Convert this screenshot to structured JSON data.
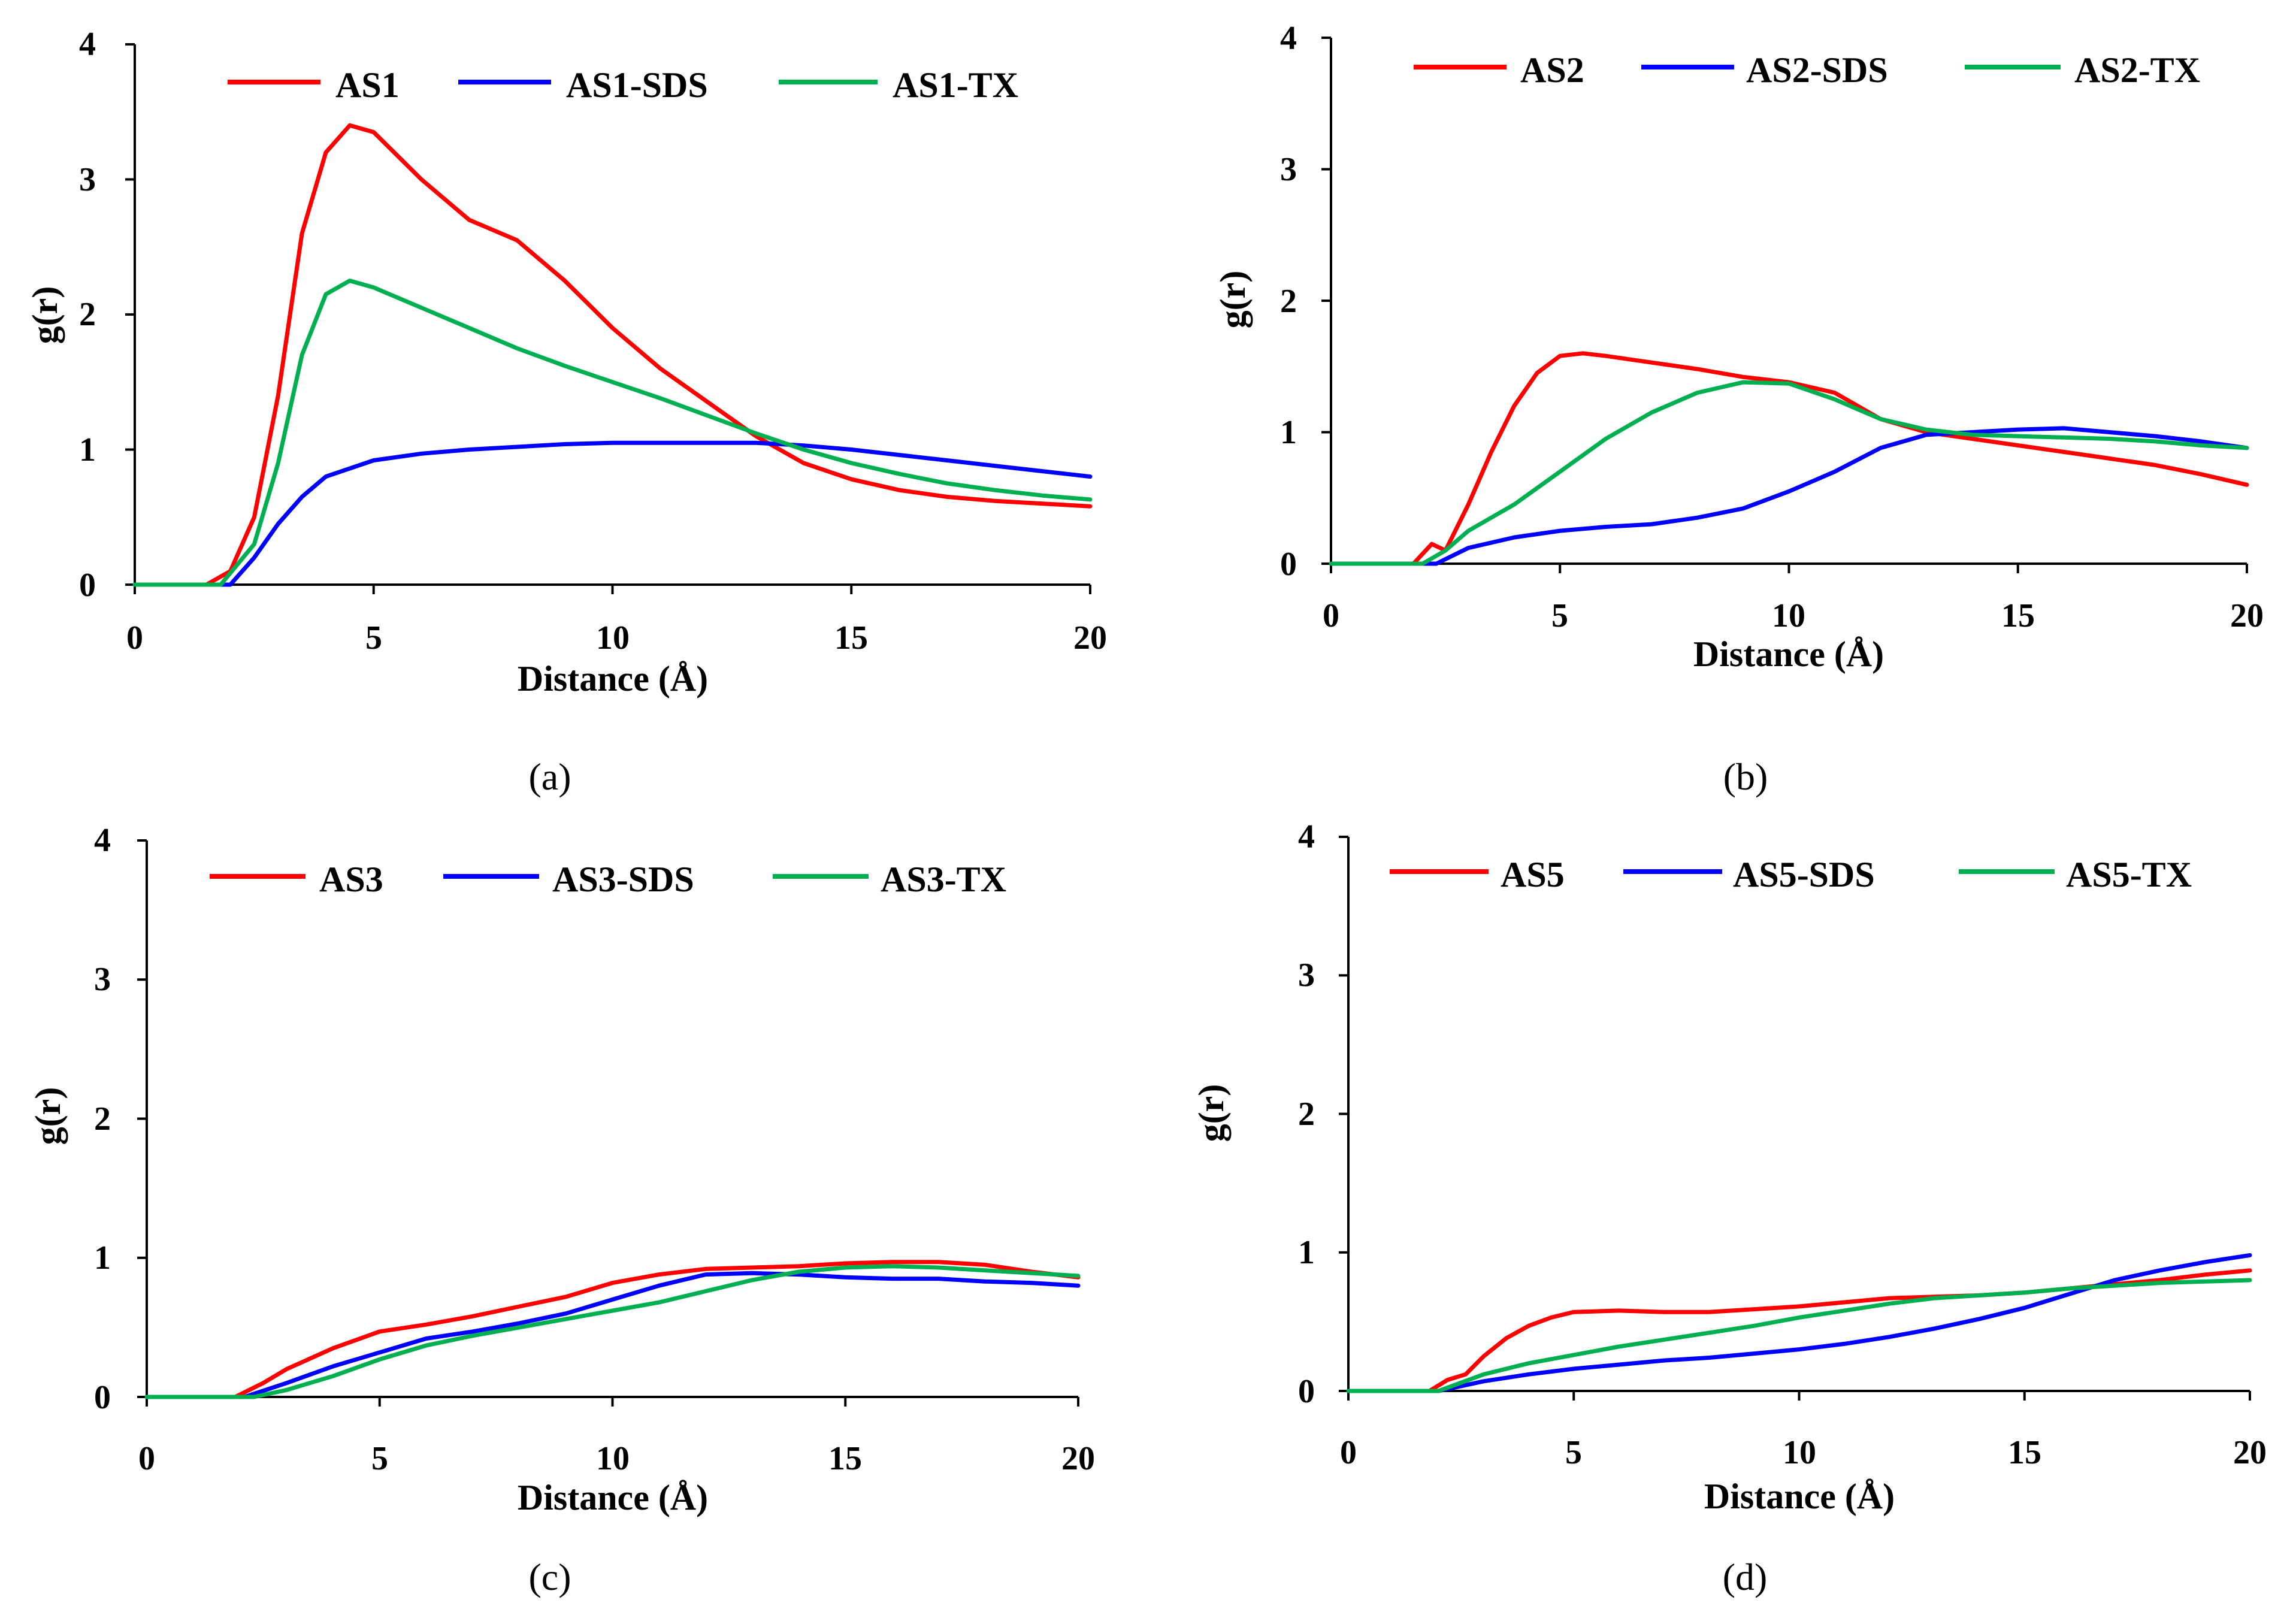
{
  "chart_data": [
    {
      "type": "line",
      "panel_label": "(a)",
      "xlabel": "Distance (Å)",
      "ylabel": "g(r)",
      "xlim": [
        0,
        20
      ],
      "ylim": [
        0,
        4
      ],
      "xticks": [
        "0",
        "5",
        "10",
        "15",
        "20"
      ],
      "yticks": [
        "0",
        "1",
        "2",
        "3",
        "4"
      ],
      "legend_position": "top",
      "series": [
        {
          "name": "AS1",
          "color": "#ff0000",
          "x": [
            0,
            1.5,
            2.0,
            2.5,
            3.0,
            3.5,
            4.0,
            4.5,
            5.0,
            6.0,
            7.0,
            8.0,
            9.0,
            10.0,
            11.0,
            12.0,
            13.0,
            14.0,
            15.0,
            16.0,
            17.0,
            18.0,
            19.0,
            20.0
          ],
          "y": [
            0,
            0,
            0.1,
            0.5,
            1.4,
            2.6,
            3.2,
            3.4,
            3.35,
            3.0,
            2.7,
            2.55,
            2.25,
            1.9,
            1.6,
            1.35,
            1.1,
            0.9,
            0.78,
            0.7,
            0.65,
            0.62,
            0.6,
            0.58
          ]
        },
        {
          "name": "AS1-SDS",
          "color": "#0000ff",
          "x": [
            0,
            2.0,
            2.5,
            3.0,
            3.5,
            4.0,
            5.0,
            6.0,
            7.0,
            8.0,
            9.0,
            10.0,
            11.0,
            12.0,
            13.0,
            14.0,
            15.0,
            16.0,
            17.0,
            18.0,
            19.0,
            20.0
          ],
          "y": [
            0,
            0,
            0.2,
            0.45,
            0.65,
            0.8,
            0.92,
            0.97,
            1.0,
            1.02,
            1.04,
            1.05,
            1.05,
            1.05,
            1.05,
            1.03,
            1.0,
            0.96,
            0.92,
            0.88,
            0.84,
            0.8
          ]
        },
        {
          "name": "AS1-TX",
          "color": "#00b050",
          "x": [
            0,
            1.8,
            2.5,
            3.0,
            3.5,
            4.0,
            4.5,
            5.0,
            6.0,
            7.0,
            8.0,
            9.0,
            10.0,
            11.0,
            12.0,
            13.0,
            14.0,
            15.0,
            16.0,
            17.0,
            18.0,
            19.0,
            20.0
          ],
          "y": [
            0,
            0,
            0.3,
            0.9,
            1.7,
            2.15,
            2.25,
            2.2,
            2.05,
            1.9,
            1.75,
            1.62,
            1.5,
            1.38,
            1.25,
            1.12,
            1.0,
            0.9,
            0.82,
            0.75,
            0.7,
            0.66,
            0.63
          ]
        }
      ]
    },
    {
      "type": "line",
      "panel_label": "(b)",
      "xlabel": "Distance (Å)",
      "ylabel": "g(r)",
      "xlim": [
        0,
        20
      ],
      "ylim": [
        0,
        4
      ],
      "xticks": [
        "0",
        "5",
        "10",
        "15",
        "20"
      ],
      "yticks": [
        "0",
        "1",
        "2",
        "3",
        "4"
      ],
      "legend_position": "top",
      "series": [
        {
          "name": "AS2",
          "color": "#ff0000",
          "x": [
            0,
            1.8,
            2.2,
            2.5,
            3.0,
            3.5,
            4.0,
            4.5,
            5.0,
            5.5,
            6.0,
            7.0,
            8.0,
            9.0,
            10.0,
            11.0,
            12.0,
            13.0,
            14.0,
            15.0,
            16.0,
            17.0,
            18.0,
            19.0,
            20.0
          ],
          "y": [
            0,
            0,
            0.15,
            0.1,
            0.45,
            0.85,
            1.2,
            1.45,
            1.58,
            1.6,
            1.58,
            1.53,
            1.48,
            1.42,
            1.38,
            1.3,
            1.1,
            1.0,
            0.95,
            0.9,
            0.85,
            0.8,
            0.75,
            0.68,
            0.6
          ]
        },
        {
          "name": "AS2-SDS",
          "color": "#0000ff",
          "x": [
            0,
            2.3,
            3.0,
            4.0,
            5.0,
            6.0,
            7.0,
            8.0,
            9.0,
            10.0,
            11.0,
            12.0,
            13.0,
            14.0,
            15.0,
            16.0,
            17.0,
            18.0,
            19.0,
            20.0
          ],
          "y": [
            0,
            0,
            0.12,
            0.2,
            0.25,
            0.28,
            0.3,
            0.35,
            0.42,
            0.55,
            0.7,
            0.88,
            0.98,
            1.0,
            1.02,
            1.03,
            1.0,
            0.97,
            0.93,
            0.88
          ]
        },
        {
          "name": "AS2-TX",
          "color": "#00b050",
          "x": [
            0,
            2.0,
            2.5,
            3.0,
            4.0,
            5.0,
            6.0,
            7.0,
            8.0,
            9.0,
            10.0,
            11.0,
            12.0,
            13.0,
            14.0,
            15.0,
            16.0,
            17.0,
            18.0,
            19.0,
            20.0
          ],
          "y": [
            0,
            0,
            0.1,
            0.25,
            0.45,
            0.7,
            0.95,
            1.15,
            1.3,
            1.38,
            1.37,
            1.25,
            1.1,
            1.02,
            0.98,
            0.97,
            0.96,
            0.95,
            0.93,
            0.9,
            0.88
          ]
        }
      ]
    },
    {
      "type": "line",
      "panel_label": "(c)",
      "xlabel": "Distance (Å)",
      "ylabel": "g(r)",
      "xlim": [
        0,
        20
      ],
      "ylim": [
        0,
        4
      ],
      "xticks": [
        "0",
        "5",
        "10",
        "15",
        "20"
      ],
      "yticks": [
        "0",
        "1",
        "2",
        "3",
        "4"
      ],
      "legend_position": "top",
      "series": [
        {
          "name": "AS3",
          "color": "#ff0000",
          "x": [
            0,
            1.9,
            2.5,
            3.0,
            4.0,
            5.0,
            6.0,
            7.0,
            8.0,
            9.0,
            10.0,
            11.0,
            12.0,
            13.0,
            14.0,
            15.0,
            16.0,
            17.0,
            18.0,
            19.0,
            20.0
          ],
          "y": [
            0,
            0,
            0.1,
            0.2,
            0.35,
            0.47,
            0.52,
            0.58,
            0.65,
            0.72,
            0.82,
            0.88,
            0.92,
            0.93,
            0.94,
            0.96,
            0.97,
            0.97,
            0.95,
            0.9,
            0.86
          ]
        },
        {
          "name": "AS3-SDS",
          "color": "#0000ff",
          "x": [
            0,
            2.1,
            3.0,
            4.0,
            5.0,
            6.0,
            7.0,
            8.0,
            9.0,
            10.0,
            11.0,
            12.0,
            13.0,
            14.0,
            15.0,
            16.0,
            17.0,
            18.0,
            19.0,
            20.0
          ],
          "y": [
            0,
            0,
            0.1,
            0.22,
            0.32,
            0.42,
            0.47,
            0.53,
            0.6,
            0.7,
            0.8,
            0.88,
            0.89,
            0.88,
            0.86,
            0.85,
            0.85,
            0.83,
            0.82,
            0.8
          ]
        },
        {
          "name": "AS3-TX",
          "color": "#00b050",
          "x": [
            0,
            2.3,
            3.0,
            4.0,
            5.0,
            6.0,
            7.0,
            8.0,
            9.0,
            10.0,
            11.0,
            12.0,
            13.0,
            14.0,
            15.0,
            16.0,
            17.0,
            18.0,
            19.0,
            20.0
          ],
          "y": [
            0,
            0,
            0.05,
            0.15,
            0.27,
            0.37,
            0.44,
            0.5,
            0.56,
            0.62,
            0.68,
            0.76,
            0.84,
            0.9,
            0.93,
            0.94,
            0.93,
            0.91,
            0.89,
            0.87
          ]
        }
      ]
    },
    {
      "type": "line",
      "panel_label": "(d)",
      "xlabel": "Distance (Å)",
      "ylabel": "g(r)",
      "xlim": [
        0,
        20
      ],
      "ylim": [
        0,
        4
      ],
      "xticks": [
        "0",
        "5",
        "10",
        "15",
        "20"
      ],
      "yticks": [
        "0",
        "1",
        "2",
        "3",
        "4"
      ],
      "legend_position": "top",
      "series": [
        {
          "name": "AS5",
          "color": "#ff0000",
          "x": [
            0,
            1.8,
            2.2,
            2.6,
            3.0,
            3.5,
            4.0,
            4.5,
            5.0,
            6.0,
            7.0,
            8.0,
            9.0,
            10.0,
            11.0,
            12.0,
            13.0,
            14.0,
            15.0,
            16.0,
            17.0,
            18.0,
            19.0,
            20.0
          ],
          "y": [
            0,
            0,
            0.08,
            0.12,
            0.25,
            0.38,
            0.47,
            0.53,
            0.57,
            0.58,
            0.57,
            0.57,
            0.59,
            0.61,
            0.64,
            0.67,
            0.68,
            0.69,
            0.71,
            0.74,
            0.77,
            0.8,
            0.84,
            0.87
          ]
        },
        {
          "name": "AS5-SDS",
          "color": "#0000ff",
          "x": [
            0,
            2.0,
            3.0,
            4.0,
            5.0,
            6.0,
            7.0,
            8.0,
            9.0,
            10.0,
            11.0,
            12.0,
            13.0,
            14.0,
            15.0,
            16.0,
            17.0,
            18.0,
            19.0,
            20.0
          ],
          "y": [
            0,
            0,
            0.07,
            0.12,
            0.16,
            0.19,
            0.22,
            0.24,
            0.27,
            0.3,
            0.34,
            0.39,
            0.45,
            0.52,
            0.6,
            0.7,
            0.8,
            0.87,
            0.93,
            0.98
          ]
        },
        {
          "name": "AS5-TX",
          "color": "#00b050",
          "x": [
            0,
            2.0,
            3.0,
            4.0,
            5.0,
            6.0,
            7.0,
            8.0,
            9.0,
            10.0,
            11.0,
            12.0,
            13.0,
            14.0,
            15.0,
            16.0,
            17.0,
            18.0,
            19.0,
            20.0
          ],
          "y": [
            0,
            0,
            0.12,
            0.2,
            0.26,
            0.32,
            0.37,
            0.42,
            0.47,
            0.53,
            0.58,
            0.63,
            0.67,
            0.69,
            0.71,
            0.74,
            0.76,
            0.78,
            0.79,
            0.8
          ]
        }
      ]
    }
  ]
}
